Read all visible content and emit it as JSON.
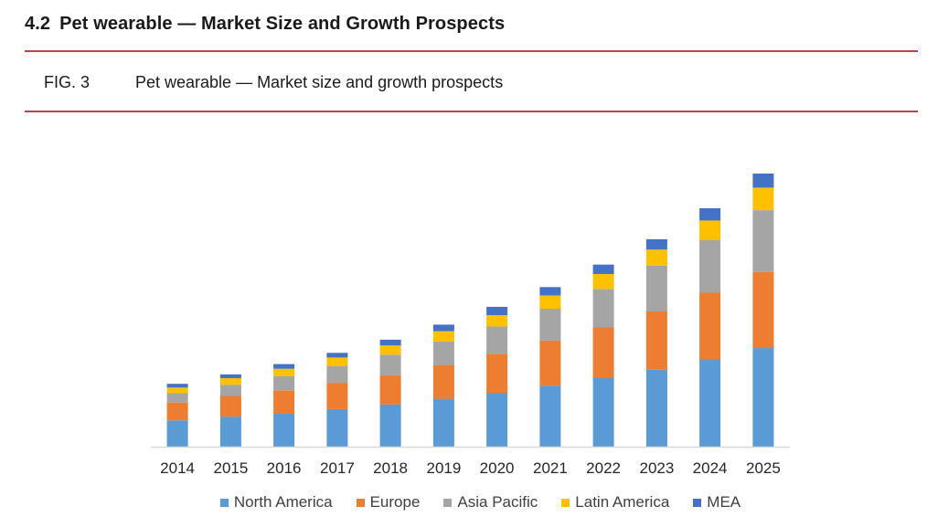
{
  "header": {
    "section_number": "4.2",
    "section_title": "Pet wearable — Market Size and Growth Prospects",
    "figure_label": "FIG. 3",
    "figure_caption": "Pet wearable — Market size and growth prospects"
  },
  "chart_data": {
    "type": "bar",
    "stacked": true,
    "categories": [
      "2014",
      "2015",
      "2016",
      "2017",
      "2018",
      "2019",
      "2020",
      "2021",
      "2022",
      "2023",
      "2024",
      "2025"
    ],
    "series": [
      {
        "name": "North America",
        "color": "#5b9bd5",
        "values": [
          28,
          32,
          35,
          40,
          45,
          51,
          57,
          65,
          73,
          82,
          93,
          105
        ]
      },
      {
        "name": "Europe",
        "color": "#ed7d31",
        "values": [
          19,
          22,
          25,
          28,
          31,
          36,
          42,
          48,
          54,
          62,
          71,
          81
        ]
      },
      {
        "name": "Asia Pacific",
        "color": "#a5a5a5",
        "values": [
          10,
          12,
          15,
          18,
          22,
          25,
          29,
          34,
          41,
          49,
          56,
          66
        ]
      },
      {
        "name": "Latin America",
        "color": "#ffc000",
        "values": [
          6,
          7,
          8,
          9,
          10,
          11,
          12,
          14,
          16,
          17,
          21,
          24
        ]
      },
      {
        "name": "MEA",
        "color": "#4472c4",
        "values": [
          4,
          4,
          5,
          5,
          6,
          7,
          9,
          9,
          10,
          11,
          13,
          15
        ]
      }
    ],
    "xlabel": "",
    "ylabel": "",
    "y_axis_visible": false,
    "grid": false,
    "legend_position": "bottom"
  }
}
